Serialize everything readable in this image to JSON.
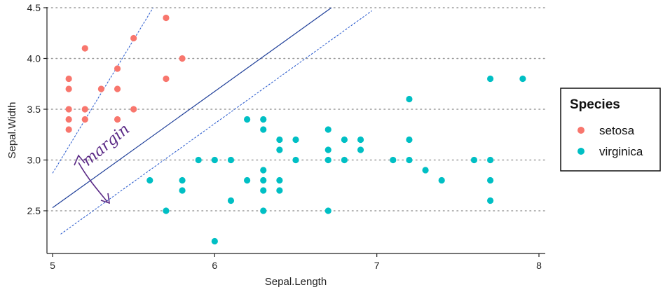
{
  "chart_data": {
    "type": "scatter",
    "xlabel": "Sepal.Length",
    "ylabel": "Sepal.Width",
    "xlim": [
      4.99,
      8.05
    ],
    "ylim": [
      2.15,
      4.5
    ],
    "x_ticks": [
      5,
      6,
      7,
      8
    ],
    "y_ticks": [
      2.5,
      3.0,
      3.5,
      4.0,
      4.5
    ],
    "y_tick_labels": [
      "2.5",
      "3.0",
      "3.5",
      "4.0",
      "4.5"
    ],
    "grid": "horizontal-dotted",
    "legend": {
      "title": "Species",
      "placement": "right",
      "entries": [
        "setosa",
        "virginica"
      ]
    },
    "series": [
      {
        "name": "setosa",
        "color": "#F8766D",
        "points": [
          [
            5.1,
            3.3
          ],
          [
            5.1,
            3.4
          ],
          [
            5.1,
            3.5
          ],
          [
            5.1,
            3.7
          ],
          [
            5.1,
            3.8
          ],
          [
            5.2,
            3.4
          ],
          [
            5.2,
            3.5
          ],
          [
            5.2,
            4.1
          ],
          [
            5.3,
            3.7
          ],
          [
            5.4,
            3.4
          ],
          [
            5.4,
            3.7
          ],
          [
            5.4,
            3.9
          ],
          [
            5.5,
            3.5
          ],
          [
            5.5,
            4.2
          ],
          [
            5.7,
            3.8
          ],
          [
            5.7,
            4.4
          ],
          [
            5.8,
            4.0
          ]
        ]
      },
      {
        "name": "virginica",
        "color": "#00BFC4",
        "points": [
          [
            5.6,
            2.8
          ],
          [
            5.7,
            2.5
          ],
          [
            5.8,
            2.7
          ],
          [
            5.8,
            2.8
          ],
          [
            5.9,
            3.0
          ],
          [
            6.0,
            2.2
          ],
          [
            6.0,
            3.0
          ],
          [
            6.1,
            2.6
          ],
          [
            6.1,
            3.0
          ],
          [
            6.2,
            2.8
          ],
          [
            6.2,
            3.4
          ],
          [
            6.3,
            2.5
          ],
          [
            6.3,
            2.7
          ],
          [
            6.3,
            2.8
          ],
          [
            6.3,
            2.9
          ],
          [
            6.3,
            3.3
          ],
          [
            6.3,
            3.4
          ],
          [
            6.4,
            2.7
          ],
          [
            6.4,
            2.8
          ],
          [
            6.4,
            3.1
          ],
          [
            6.4,
            3.2
          ],
          [
            6.5,
            3.0
          ],
          [
            6.5,
            3.2
          ],
          [
            6.7,
            2.5
          ],
          [
            6.7,
            3.0
          ],
          [
            6.7,
            3.1
          ],
          [
            6.7,
            3.3
          ],
          [
            6.8,
            3.0
          ],
          [
            6.8,
            3.2
          ],
          [
            6.9,
            3.1
          ],
          [
            6.9,
            3.2
          ],
          [
            7.1,
            3.0
          ],
          [
            7.2,
            3.0
          ],
          [
            7.2,
            3.2
          ],
          [
            7.2,
            3.6
          ],
          [
            7.3,
            2.9
          ],
          [
            7.4,
            2.8
          ],
          [
            7.6,
            3.0
          ],
          [
            7.7,
            2.6
          ],
          [
            7.7,
            2.8
          ],
          [
            7.7,
            3.0
          ],
          [
            7.7,
            3.8
          ],
          [
            7.9,
            3.8
          ]
        ]
      }
    ],
    "decision_boundary": {
      "from": [
        5.0,
        2.53
      ],
      "to": [
        6.72,
        4.5
      ],
      "color": "#1f3f99"
    },
    "margin_lines": [
      {
        "from": [
          5.0,
          2.87
        ],
        "to": [
          5.5,
          4.5
        ],
        "through": [
          5.0,
          2.87
        ],
        "end": [
          5.62,
          4.5
        ]
      },
      {
        "from": [
          5.05,
          2.27
        ],
        "to": [
          6.97,
          4.47
        ]
      }
    ],
    "annotation": {
      "text": "margin",
      "color": "#5b2a86"
    }
  }
}
